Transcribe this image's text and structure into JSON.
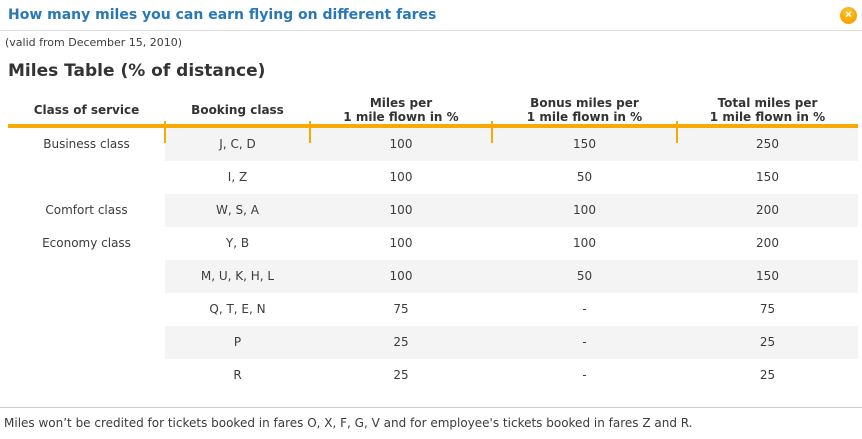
{
  "header": {
    "title": "How many miles you can earn flying on different fares",
    "close_icon": "✕"
  },
  "valid_from": "(valid from December 15, 2010)",
  "section_title": "Miles Table (% of distance)",
  "table": {
    "columns": [
      "Class of service",
      "Booking class",
      "Miles per\n1 mile flown in %",
      "Bonus miles per\n1 mile flown in %",
      "Total miles per\n1 mile flown in %"
    ],
    "rows": [
      {
        "service": "Business class",
        "booking": "J, C, D",
        "miles": "100",
        "bonus": "150",
        "total": "250"
      },
      {
        "service": "",
        "booking": "I, Z",
        "miles": "100",
        "bonus": "50",
        "total": "150"
      },
      {
        "service": "Comfort class",
        "booking": "W, S, A",
        "miles": "100",
        "bonus": "100",
        "total": "200"
      },
      {
        "service": "Economy class",
        "booking": "Y, B",
        "miles": "100",
        "bonus": "100",
        "total": "200"
      },
      {
        "service": "",
        "booking": "M, U, K, H, L",
        "miles": "100",
        "bonus": "50",
        "total": "150"
      },
      {
        "service": "",
        "booking": "Q, T, E, N",
        "miles": "75",
        "bonus": "-",
        "total": "75"
      },
      {
        "service": "",
        "booking": "P",
        "miles": "25",
        "bonus": "-",
        "total": "25"
      },
      {
        "service": "",
        "booking": "R",
        "miles": "25",
        "bonus": "-",
        "total": "25"
      }
    ]
  },
  "footer_note": "Miles won’t be credited for tickets booked in fares O, X, F, G, V and for employee's tickets booked in fares Z and R.",
  "colors": {
    "accent_orange": "#f9aa00",
    "title_blue": "#2878b8",
    "row_shade": "#f4f4f4"
  }
}
